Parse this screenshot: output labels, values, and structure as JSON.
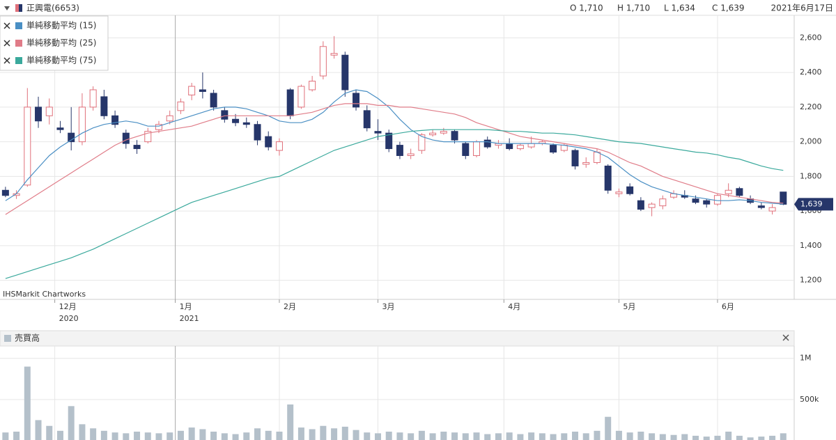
{
  "header": {
    "title": "正興電(6653)",
    "open": "O 1,710",
    "high": "H 1,710",
    "low": "L 1,634",
    "close": "C 1,639",
    "date": "2021年6月17日"
  },
  "watermark": "IHSMarkit Chartworks",
  "chart_data": [
    {
      "type": "candlestick",
      "xlim": [
        -0.5,
        72
      ],
      "ylim": [
        1090,
        2730
      ],
      "yticks": [
        {
          "value": 1200,
          "label": "1,200"
        },
        {
          "value": 1400,
          "label": "1,400"
        },
        {
          "value": 1600,
          "label": "1,600"
        },
        {
          "value": 1800,
          "label": "1,800"
        },
        {
          "value": 2000,
          "label": "2,000"
        },
        {
          "value": 2200,
          "label": "2,200"
        },
        {
          "value": 2400,
          "label": "2,400"
        },
        {
          "value": 2600,
          "label": "2,600"
        }
      ],
      "xticks": [
        {
          "value": 4.5,
          "label": "12月"
        },
        {
          "value": 15.5,
          "label": "1月"
        },
        {
          "value": 25,
          "label": "2月"
        },
        {
          "value": 34,
          "label": "3月"
        },
        {
          "value": 45.5,
          "label": "4月"
        },
        {
          "value": 56,
          "label": "5月"
        },
        {
          "value": 65,
          "label": "6月"
        }
      ],
      "year_ticks": [
        {
          "value": 4.5,
          "label": "2020"
        },
        {
          "value": 15.5,
          "label": "2021"
        }
      ],
      "grid": true,
      "up_color": "#e0707a",
      "down_color": "#26366a",
      "last_price": {
        "value": 1639,
        "label": "1,639"
      },
      "candles": [
        [
          1720,
          1740,
          1680,
          1690
        ],
        [
          1690,
          1720,
          1670,
          1700
        ],
        [
          1750,
          2310,
          1740,
          2200
        ],
        [
          2200,
          2260,
          2080,
          2120
        ],
        [
          2150,
          2250,
          2100,
          2200
        ],
        [
          2080,
          2120,
          2050,
          2070
        ],
        [
          2050,
          2200,
          1950,
          2000
        ],
        [
          2000,
          2280,
          1980,
          2200
        ],
        [
          2200,
          2320,
          2180,
          2300
        ],
        [
          2260,
          2300,
          2130,
          2150
        ],
        [
          2150,
          2180,
          2080,
          2100
        ],
        [
          2050,
          2070,
          1960,
          1990
        ],
        [
          1980,
          2010,
          1930,
          1960
        ],
        [
          2000,
          2080,
          1990,
          2060
        ],
        [
          2070,
          2120,
          2050,
          2100
        ],
        [
          2120,
          2180,
          2100,
          2150
        ],
        [
          2180,
          2250,
          2160,
          2230
        ],
        [
          2270,
          2340,
          2240,
          2320
        ],
        [
          2300,
          2400,
          2250,
          2290
        ],
        [
          2280,
          2300,
          2180,
          2200
        ],
        [
          2180,
          2200,
          2110,
          2130
        ],
        [
          2130,
          2160,
          2090,
          2110
        ],
        [
          2110,
          2140,
          2080,
          2100
        ],
        [
          2100,
          2120,
          1980,
          2010
        ],
        [
          2030,
          2060,
          1950,
          1970
        ],
        [
          1950,
          2020,
          1920,
          2000
        ],
        [
          2300,
          2310,
          2130,
          2150
        ],
        [
          2200,
          2330,
          2190,
          2320
        ],
        [
          2300,
          2380,
          2290,
          2350
        ],
        [
          2380,
          2580,
          2360,
          2550
        ],
        [
          2500,
          2610,
          2480,
          2510
        ],
        [
          2500,
          2520,
          2260,
          2300
        ],
        [
          2280,
          2300,
          2180,
          2200
        ],
        [
          2180,
          2210,
          2060,
          2080
        ],
        [
          2060,
          2130,
          2010,
          2050
        ],
        [
          2050,
          2070,
          1940,
          1960
        ],
        [
          1980,
          2000,
          1900,
          1920
        ],
        [
          1920,
          1960,
          1900,
          1930
        ],
        [
          1950,
          2050,
          1930,
          2040
        ],
        [
          2040,
          2070,
          2030,
          2050
        ],
        [
          2050,
          2080,
          2040,
          2060
        ],
        [
          2060,
          2070,
          1990,
          2010
        ],
        [
          1990,
          2000,
          1900,
          1920
        ],
        [
          1920,
          2010,
          1910,
          2000
        ],
        [
          2010,
          2030,
          1960,
          1970
        ],
        [
          1980,
          2010,
          1960,
          1990
        ],
        [
          1990,
          2020,
          1950,
          1960
        ],
        [
          1960,
          1990,
          1950,
          1980
        ],
        [
          1970,
          2030,
          1960,
          1990
        ],
        [
          1990,
          2010,
          1980,
          2000
        ],
        [
          1980,
          1990,
          1930,
          1940
        ],
        [
          1950,
          1990,
          1940,
          1980
        ],
        [
          1950,
          1960,
          1840,
          1860
        ],
        [
          1870,
          1910,
          1850,
          1880
        ],
        [
          1880,
          1960,
          1870,
          1940
        ],
        [
          1860,
          1870,
          1700,
          1720
        ],
        [
          1700,
          1730,
          1680,
          1710
        ],
        [
          1740,
          1760,
          1690,
          1700
        ],
        [
          1660,
          1680,
          1600,
          1610
        ],
        [
          1620,
          1650,
          1570,
          1640
        ],
        [
          1630,
          1690,
          1610,
          1670
        ],
        [
          1680,
          1720,
          1670,
          1700
        ],
        [
          1690,
          1720,
          1670,
          1680
        ],
        [
          1670,
          1690,
          1640,
          1650
        ],
        [
          1660,
          1670,
          1620,
          1640
        ],
        [
          1640,
          1700,
          1630,
          1690
        ],
        [
          1700,
          1760,
          1680,
          1720
        ],
        [
          1730,
          1740,
          1680,
          1690
        ],
        [
          1670,
          1690,
          1640,
          1650
        ],
        [
          1630,
          1650,
          1610,
          1620
        ],
        [
          1600,
          1640,
          1580,
          1620
        ],
        [
          1710,
          1710,
          1634,
          1639
        ]
      ],
      "series": [
        {
          "name": "単純移動平均 (15)",
          "color": "#4a8fc4",
          "values": [
            1660,
            1700,
            1780,
            1850,
            1920,
            1970,
            2010,
            2050,
            2080,
            2100,
            2110,
            2120,
            2110,
            2090,
            2090,
            2110,
            2130,
            2150,
            2170,
            2190,
            2200,
            2200,
            2190,
            2170,
            2150,
            2120,
            2110,
            2110,
            2130,
            2170,
            2230,
            2280,
            2300,
            2290,
            2250,
            2200,
            2130,
            2070,
            2030,
            2010,
            2000,
            2000,
            2000,
            2000,
            2000,
            1990,
            1990,
            1990,
            1990,
            1990,
            1985,
            1980,
            1970,
            1960,
            1940,
            1910,
            1860,
            1810,
            1770,
            1740,
            1720,
            1700,
            1690,
            1680,
            1670,
            1660,
            1660,
            1665,
            1660,
            1650,
            1645,
            1640
          ]
        },
        {
          "name": "単純移動平均 (25)",
          "color": "#e07c88",
          "values": [
            1580,
            1620,
            1660,
            1700,
            1740,
            1780,
            1820,
            1860,
            1900,
            1940,
            1980,
            2010,
            2030,
            2050,
            2060,
            2070,
            2080,
            2090,
            2110,
            2130,
            2150,
            2150,
            2150,
            2150,
            2150,
            2150,
            2150,
            2160,
            2170,
            2190,
            2210,
            2220,
            2220,
            2220,
            2210,
            2210,
            2200,
            2200,
            2190,
            2180,
            2170,
            2160,
            2140,
            2110,
            2090,
            2070,
            2050,
            2030,
            2020,
            2010,
            2000,
            1990,
            1980,
            1970,
            1960,
            1940,
            1910,
            1880,
            1860,
            1830,
            1800,
            1780,
            1760,
            1740,
            1720,
            1700,
            1690,
            1680,
            1670,
            1660,
            1650,
            1645
          ]
        },
        {
          "name": "単純移動平均 (75)",
          "color": "#3aa99c",
          "values": [
            1210,
            1230,
            1250,
            1270,
            1290,
            1310,
            1330,
            1355,
            1380,
            1410,
            1440,
            1470,
            1500,
            1530,
            1560,
            1590,
            1620,
            1650,
            1670,
            1690,
            1710,
            1730,
            1750,
            1770,
            1790,
            1800,
            1830,
            1860,
            1890,
            1920,
            1950,
            1970,
            1990,
            2010,
            2030,
            2040,
            2050,
            2060,
            2065,
            2070,
            2070,
            2070,
            2070,
            2070,
            2070,
            2065,
            2060,
            2060,
            2055,
            2050,
            2050,
            2045,
            2040,
            2030,
            2020,
            2010,
            2000,
            1995,
            1990,
            1980,
            1970,
            1960,
            1950,
            1940,
            1935,
            1925,
            1910,
            1900,
            1880,
            1860,
            1845,
            1835
          ]
        }
      ]
    },
    {
      "type": "bar",
      "title": "売買高",
      "color": "#b4c0ca",
      "xlim": [
        -0.5,
        72
      ],
      "ylim": [
        0,
        1150000
      ],
      "yticks": [
        {
          "value": 500000,
          "label": "500k"
        },
        {
          "value": 1000000,
          "label": "1M"
        }
      ],
      "values": [
        100000,
        110000,
        900000,
        250000,
        180000,
        120000,
        420000,
        200000,
        150000,
        120000,
        100000,
        90000,
        110000,
        100000,
        90000,
        100000,
        120000,
        160000,
        140000,
        110000,
        90000,
        80000,
        100000,
        150000,
        120000,
        110000,
        440000,
        160000,
        140000,
        180000,
        150000,
        170000,
        130000,
        100000,
        90000,
        110000,
        100000,
        90000,
        120000,
        90000,
        110000,
        100000,
        90000,
        100000,
        80000,
        90000,
        100000,
        80000,
        100000,
        90000,
        80000,
        90000,
        110000,
        90000,
        120000,
        290000,
        120000,
        100000,
        110000,
        90000,
        80000,
        70000,
        80000,
        60000,
        50000,
        60000,
        110000,
        60000,
        40000,
        50000,
        60000,
        90000
      ]
    }
  ]
}
